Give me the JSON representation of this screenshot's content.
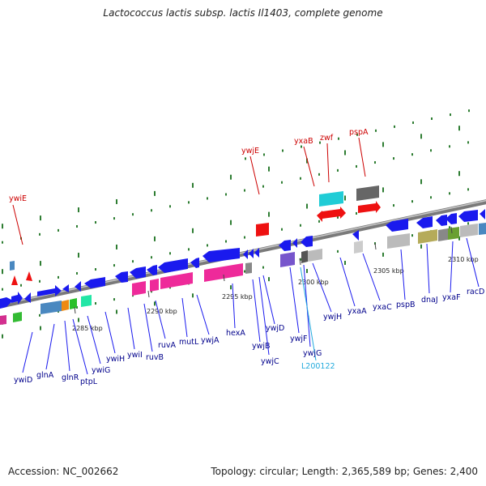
{
  "title": "Lactococcus lactis subsp. lactis Il1403, complete genome",
  "footer": {
    "accession": "Accession: NC_002662",
    "info": "Topology: circular; Length: 2,365,589 bp; Genes: 2,400"
  },
  "colors": {
    "backbone": "#8a8a8a",
    "gene_label": "#00008b",
    "highlight_label": "#cc0000",
    "rna_label": "#22aadd",
    "tick": "#2e7d32",
    "arrow_blue": "#1a1aee",
    "arrow_red": "#ee1111"
  },
  "scale": [
    "2285 kbp",
    "2290 kbp",
    "2295 kbp",
    "2300 kbp",
    "2305 kbp",
    "2310 kbp"
  ],
  "genes_lower": [
    "ywiD",
    "glnA",
    "glnR",
    "ptpL",
    "ywiG",
    "ywiH",
    "ywiI",
    "ruvB",
    "ruvA",
    "mutL",
    "ywjA",
    "hexA",
    "ywjB",
    "ywjC",
    "ywjD",
    "ywjF",
    "ywjG",
    "ywjH",
    "yxaA",
    "yxaC",
    "pspB",
    "dnaJ",
    "yxaF",
    "racD"
  ],
  "rna_label": "L200122",
  "genes_upper": [
    "ywiE",
    "ywjE",
    "yxaB",
    "zwf",
    "pspA"
  ]
}
